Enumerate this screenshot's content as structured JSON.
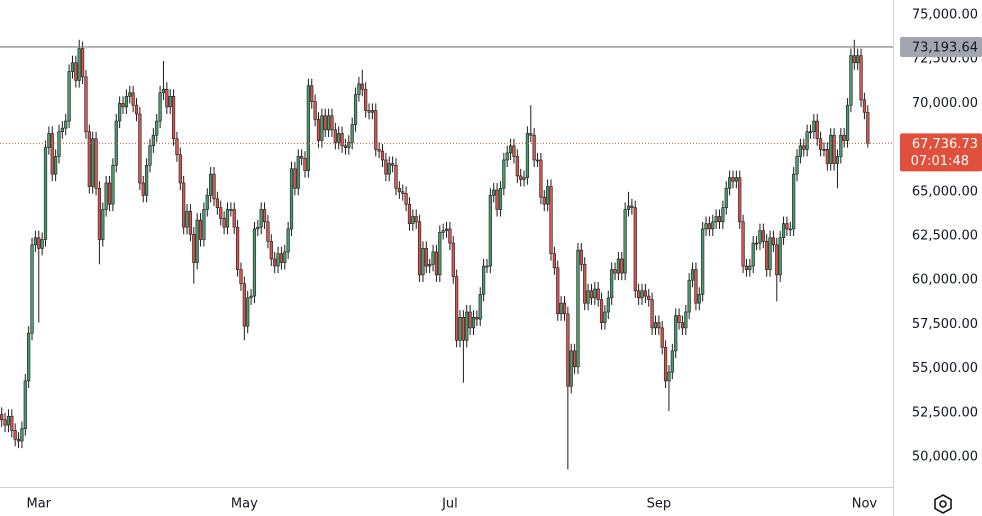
{
  "chart_data": {
    "type": "candlestick",
    "categories": [
      null,
      null,
      null,
      null,
      null,
      null,
      null,
      null,
      null,
      null,
      null,
      "Mar",
      null,
      null,
      null,
      null,
      null,
      null,
      null,
      null,
      null,
      null,
      null,
      null,
      null,
      null,
      null,
      null,
      null,
      null,
      null,
      null,
      null,
      null,
      null,
      null,
      null,
      null,
      null,
      null,
      null,
      null,
      null,
      null,
      null,
      null,
      null,
      null,
      null,
      null,
      null,
      null,
      null,
      null,
      null,
      null,
      null,
      null,
      null,
      null,
      null,
      null,
      null,
      null,
      null,
      null,
      null,
      null,
      null,
      null,
      null,
      null,
      "May",
      null,
      null,
      null,
      null,
      null,
      null,
      null,
      null,
      null,
      null,
      null,
      null,
      null,
      null,
      null,
      null,
      null,
      null,
      null,
      null,
      null,
      null,
      null,
      null,
      null,
      null,
      null,
      null,
      null,
      null,
      null,
      null,
      null,
      null,
      null,
      null,
      null,
      null,
      null,
      null,
      null,
      null,
      null,
      null,
      null,
      null,
      null,
      null,
      null,
      null,
      null,
      null,
      null,
      null,
      null,
      null,
      null,
      null,
      null,
      null,
      "Jul",
      null,
      null,
      null,
      null,
      null,
      null,
      null,
      null,
      null,
      null,
      null,
      null,
      null,
      null,
      null,
      null,
      null,
      null,
      null,
      null,
      null,
      null,
      null,
      null,
      null,
      null,
      null,
      null,
      null,
      null,
      null,
      null,
      null,
      null,
      null,
      null,
      null,
      null,
      null,
      null,
      null,
      null,
      null,
      null,
      null,
      null,
      null,
      null,
      null,
      null,
      null,
      null,
      null,
      null,
      null,
      null,
      null,
      null,
      null,
      null,
      null,
      "Sep",
      null,
      null,
      null,
      null,
      null,
      null,
      null,
      null,
      null,
      null,
      null,
      null,
      null,
      null,
      null,
      null,
      null,
      null,
      null,
      null,
      null,
      null,
      null,
      null,
      null,
      null,
      null,
      null,
      null,
      null,
      null,
      null,
      null,
      null,
      null,
      null,
      null,
      null,
      null,
      null,
      null,
      null,
      null,
      null,
      null,
      null,
      null,
      null,
      null,
      null,
      null,
      null,
      null,
      null,
      null,
      null,
      null,
      null,
      null,
      null,
      "Nov",
      null
    ],
    "open": [
      52400,
      52100,
      51800,
      52300,
      51500,
      51000,
      50900,
      51600,
      54300,
      57000,
      62000,
      62400,
      61800,
      62300,
      67500,
      68300,
      66000,
      67000,
      68400,
      68600,
      69000,
      71800,
      72300,
      71300,
      73100,
      71500,
      68400,
      65300,
      68000,
      65200,
      62300,
      64000,
      65500,
      64300,
      66500,
      69000,
      70000,
      69800,
      70400,
      70600,
      69900,
      69400,
      65500,
      64800,
      66500,
      67600,
      68200,
      69000,
      70600,
      70800,
      69800,
      70400,
      68000,
      67100,
      65500,
      63000,
      63900,
      62600,
      61000,
      63400,
      62300,
      64000,
      64800,
      66000,
      64600,
      64100,
      63500,
      63000,
      64000,
      64000,
      63000,
      60600,
      59800,
      57400,
      59000,
      59100,
      62900,
      63000,
      64000,
      63300,
      62200,
      61200,
      60800,
      61500,
      61000,
      61600,
      62900,
      66300,
      65200,
      67000,
      66900,
      66200,
      71000,
      70100,
      69100,
      67900,
      69300,
      68500,
      69300,
      68500,
      67800,
      68300,
      67600,
      67500,
      67800,
      68800,
      70500,
      71100,
      70800,
      69600,
      69500,
      69600,
      67400,
      67300,
      66800,
      66000,
      66600,
      66500,
      65200,
      65000,
      64900,
      64300,
      63200,
      63600,
      63300,
      60300,
      61800,
      60800,
      60900,
      61600,
      60300,
      62700,
      62800,
      62900,
      62100,
      60200,
      56600,
      57900,
      56600,
      58200,
      57300,
      57900,
      57800,
      59200,
      60800,
      60800,
      64800,
      65100,
      64000,
      65200,
      66800,
      67200,
      67600,
      67000,
      65900,
      65700,
      65800,
      68300,
      68200,
      66800,
      66800,
      64700,
      64300,
      65300,
      61500,
      60700,
      58100,
      58700,
      58100,
      54000,
      56000,
      55100,
      61700,
      60900,
      58700,
      59400,
      59000,
      59500,
      58900,
      57600,
      58200,
      59000,
      60600,
      60400,
      61200,
      60400,
      64000,
      64200,
      64100,
      59400,
      59000,
      59400,
      59100,
      58900,
      57300,
      57600,
      57300,
      56200,
      54300,
      54800,
      56000,
      58000,
      57600,
      57300,
      58200,
      60000,
      60600,
      58700,
      59200,
      62900,
      63200,
      62900,
      63300,
      63600,
      63300,
      64100,
      65200,
      65800,
      65600,
      65800,
      63300,
      60800,
      60600,
      60800,
      62100,
      62100,
      62800,
      62200,
      60600,
      62400,
      62000,
      60300,
      62400,
      63200,
      62900,
      62900,
      66000,
      67000,
      67600,
      67400,
      68400,
      68400,
      69000,
      68000,
      67400,
      67400,
      66600,
      68200,
      66600,
      67000,
      68200,
      67900,
      69900,
      72700,
      72300,
      72700,
      70200,
      69500
    ],
    "high": [
      52800,
      52500,
      52700,
      52700,
      51900,
      51400,
      52000,
      54700,
      57400,
      62400,
      62800,
      62800,
      62700,
      67900,
      68700,
      68700,
      67400,
      68800,
      69000,
      69400,
      72200,
      72700,
      72700,
      73600,
      73500,
      71900,
      68800,
      68400,
      68400,
      65600,
      64400,
      65900,
      65900,
      66900,
      69400,
      70400,
      70400,
      70800,
      71000,
      71000,
      70300,
      69800,
      65900,
      66900,
      68000,
      68600,
      69400,
      71000,
      72400,
      71200,
      70800,
      70800,
      68400,
      67500,
      65900,
      64300,
      64300,
      63000,
      63800,
      63800,
      64400,
      65200,
      66400,
      66400,
      65000,
      64500,
      63900,
      64400,
      64400,
      64400,
      63400,
      61000,
      60200,
      59400,
      59500,
      63300,
      63400,
      64400,
      64400,
      63700,
      62600,
      61600,
      61900,
      61900,
      62000,
      63300,
      66700,
      66700,
      67400,
      67400,
      67300,
      71400,
      71400,
      70500,
      69500,
      69700,
      69700,
      69700,
      69700,
      68900,
      68700,
      68700,
      68000,
      68200,
      69200,
      70900,
      71500,
      71900,
      71200,
      70000,
      70000,
      70000,
      67800,
      67700,
      67200,
      67000,
      67000,
      66900,
      65600,
      65400,
      65300,
      64700,
      64000,
      64000,
      63700,
      62200,
      62200,
      61200,
      62000,
      62000,
      63100,
      63200,
      63300,
      63300,
      62500,
      60600,
      58300,
      58300,
      58600,
      58600,
      58300,
      58300,
      59600,
      61200,
      61200,
      65200,
      65500,
      65500,
      65600,
      67200,
      67600,
      68000,
      68000,
      67400,
      66300,
      66200,
      68700,
      69900,
      68600,
      67200,
      67200,
      65100,
      65700,
      65700,
      61900,
      61100,
      59100,
      59100,
      58500,
      56400,
      56400,
      62100,
      62100,
      61300,
      59800,
      59800,
      59900,
      59900,
      59300,
      58600,
      59400,
      61000,
      61000,
      61600,
      61600,
      64400,
      65000,
      64600,
      64500,
      59800,
      59800,
      59800,
      59500,
      59300,
      58000,
      58000,
      57700,
      56600,
      55200,
      56400,
      58400,
      58400,
      58000,
      58600,
      60400,
      61000,
      61000,
      59600,
      63300,
      63600,
      63600,
      63700,
      64000,
      64000,
      64500,
      65600,
      66200,
      66200,
      66200,
      66200,
      63700,
      61200,
      61200,
      62500,
      62500,
      63200,
      63200,
      62600,
      62800,
      62800,
      62400,
      62800,
      63600,
      63600,
      63300,
      66400,
      67400,
      68000,
      68000,
      68800,
      68800,
      69400,
      69400,
      68400,
      67800,
      67800,
      68600,
      68600,
      67400,
      68600,
      68600,
      70300,
      73100,
      73600,
      73100,
      73100,
      70600,
      69900
    ],
    "low": [
      51700,
      51400,
      51400,
      51100,
      50600,
      50500,
      50500,
      51200,
      53900,
      56600,
      61600,
      57600,
      61400,
      61900,
      67100,
      65600,
      65600,
      66600,
      68000,
      68200,
      68600,
      71400,
      70900,
      70900,
      71100,
      68000,
      64900,
      64900,
      64800,
      60900,
      61900,
      63600,
      63900,
      63900,
      66100,
      68600,
      69400,
      69400,
      70000,
      69500,
      69000,
      65100,
      64400,
      64400,
      66100,
      67200,
      67800,
      68600,
      70200,
      69400,
      69400,
      67600,
      66700,
      65100,
      62600,
      62600,
      62200,
      59800,
      60600,
      61900,
      61900,
      63600,
      64400,
      64200,
      63700,
      63100,
      62600,
      62600,
      63600,
      62600,
      60200,
      59400,
      56600,
      57000,
      58600,
      58700,
      62500,
      62600,
      62900,
      61800,
      60800,
      60400,
      60400,
      60600,
      60600,
      61200,
      62500,
      64800,
      64800,
      66500,
      65800,
      65800,
      69700,
      68700,
      67500,
      67500,
      68100,
      68100,
      68100,
      67400,
      67400,
      67200,
      67100,
      67100,
      67400,
      68400,
      70100,
      70400,
      69200,
      69100,
      69100,
      67000,
      66900,
      66400,
      65600,
      65600,
      66100,
      64800,
      64600,
      64500,
      63900,
      62800,
      62800,
      62900,
      59900,
      59900,
      60400,
      60400,
      60500,
      59900,
      59900,
      62300,
      62400,
      61700,
      59800,
      56200,
      56200,
      54200,
      56200,
      56900,
      56900,
      57400,
      57400,
      58800,
      60400,
      60400,
      64400,
      63600,
      63600,
      64800,
      66400,
      66800,
      66600,
      65500,
      65300,
      65300,
      65400,
      67800,
      66400,
      66400,
      64300,
      63900,
      63900,
      61100,
      60300,
      57700,
      57700,
      57700,
      49300,
      53600,
      54700,
      54700,
      60500,
      58300,
      58300,
      58600,
      58600,
      58500,
      57200,
      57200,
      57800,
      58600,
      60000,
      60000,
      60000,
      60000,
      63600,
      63700,
      59000,
      58600,
      58600,
      58700,
      58500,
      56900,
      56900,
      56900,
      55800,
      53900,
      52600,
      54400,
      55600,
      57200,
      56900,
      56900,
      57800,
      59600,
      58300,
      58300,
      58800,
      62500,
      62500,
      62500,
      62900,
      62900,
      62900,
      63700,
      64800,
      65200,
      65200,
      62900,
      60400,
      60200,
      60200,
      60400,
      61700,
      61700,
      61800,
      60200,
      60200,
      61600,
      58800,
      59900,
      62000,
      62500,
      62500,
      62500,
      65600,
      66600,
      67000,
      67000,
      68000,
      68000,
      67600,
      67000,
      67000,
      66200,
      66200,
      66200,
      65200,
      66600,
      67500,
      67500,
      69500,
      71900,
      71900,
      69800,
      69100,
      67500
    ],
    "close": [
      52100,
      51800,
      52300,
      51500,
      51000,
      50900,
      51600,
      54300,
      57000,
      62000,
      62400,
      61800,
      62300,
      67500,
      68300,
      66000,
      67000,
      68400,
      68600,
      69000,
      71800,
      72300,
      71300,
      73100,
      71500,
      68400,
      65300,
      68000,
      65200,
      62300,
      64000,
      65500,
      64300,
      66500,
      69000,
      70000,
      69800,
      70400,
      70600,
      69900,
      69400,
      65500,
      64800,
      66500,
      67600,
      68200,
      69000,
      70600,
      70800,
      69800,
      70400,
      68000,
      67100,
      65500,
      63000,
      63900,
      62600,
      61000,
      63400,
      62300,
      64000,
      64800,
      66000,
      64600,
      64100,
      63500,
      63000,
      64000,
      64000,
      63000,
      60600,
      59800,
      57400,
      59000,
      59100,
      62900,
      63000,
      64000,
      63300,
      62200,
      61200,
      60800,
      61500,
      61000,
      61600,
      62900,
      66300,
      65200,
      67000,
      66900,
      66200,
      71000,
      70100,
      69100,
      67900,
      69300,
      68500,
      69300,
      68500,
      67800,
      68300,
      67600,
      67500,
      67800,
      68800,
      70500,
      71100,
      70800,
      69600,
      69500,
      69600,
      67400,
      67300,
      66800,
      66000,
      66600,
      66500,
      65200,
      65000,
      64900,
      64300,
      63200,
      63600,
      63300,
      60300,
      61800,
      60800,
      60900,
      61600,
      60300,
      62700,
      62800,
      62900,
      62100,
      60200,
      56600,
      57900,
      56600,
      58200,
      57300,
      57900,
      57800,
      59200,
      60800,
      60800,
      64800,
      65100,
      64000,
      65200,
      66800,
      67200,
      67600,
      67000,
      65900,
      65700,
      65800,
      68300,
      68200,
      66800,
      66800,
      64700,
      64300,
      65300,
      61500,
      60700,
      58100,
      58700,
      58100,
      54000,
      56000,
      55100,
      61700,
      60900,
      58700,
      59400,
      59000,
      59500,
      58900,
      57600,
      58200,
      59000,
      60600,
      60400,
      61200,
      60400,
      64000,
      64200,
      64100,
      59400,
      59000,
      59400,
      59100,
      58900,
      57300,
      57600,
      57300,
      56200,
      54300,
      54800,
      56000,
      58000,
      57600,
      57300,
      58200,
      60000,
      60600,
      58700,
      59200,
      62900,
      63200,
      62900,
      63300,
      63600,
      63300,
      64100,
      65200,
      65800,
      65600,
      65800,
      63300,
      60800,
      60600,
      60800,
      62100,
      62100,
      62800,
      62200,
      60600,
      62400,
      62000,
      60300,
      62400,
      63200,
      62900,
      62900,
      66000,
      67000,
      67600,
      67400,
      68400,
      68400,
      69000,
      68000,
      67400,
      67400,
      66600,
      68200,
      66600,
      67000,
      68200,
      67900,
      69900,
      72700,
      72300,
      72700,
      70200,
      69500,
      67736.73
    ],
    "up_color": "#4a9c6d",
    "down_color": "#d9534f",
    "wick_color": "#1b1b1b",
    "ylim": [
      48300,
      75850
    ],
    "yticks": [
      {
        "value": 50000,
        "label": "50,000.00"
      },
      {
        "value": 52500,
        "label": "52,500.00"
      },
      {
        "value": 55000,
        "label": "55,000.00"
      },
      {
        "value": 57500,
        "label": "57,500.00"
      },
      {
        "value": 60000,
        "label": "60,000.00"
      },
      {
        "value": 62500,
        "label": "62,500.00"
      },
      {
        "value": 65000,
        "label": "65,000.00"
      },
      {
        "value": 67500,
        "label": "67,500.00"
      },
      {
        "value": 70000,
        "label": "70,000.00"
      },
      {
        "value": 72500,
        "label": "72,500.00"
      },
      {
        "value": 75000,
        "label": "75,000.00"
      }
    ],
    "grid": false,
    "price_line": {
      "value": 73193.64,
      "label": "73,193.64",
      "color": "#787b86"
    },
    "last_price": {
      "value": 67736.73,
      "label": "67,736.73",
      "countdown": "07:01:48",
      "color": "#e0503c"
    }
  }
}
